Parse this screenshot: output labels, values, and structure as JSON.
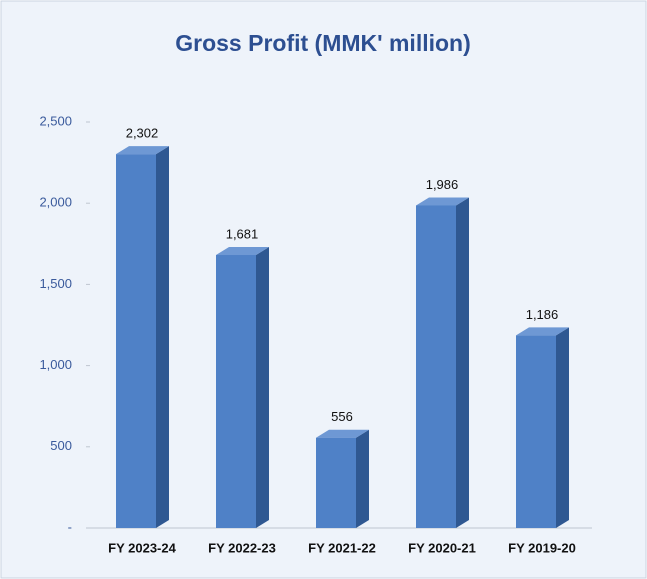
{
  "chart_data": {
    "type": "bar3d",
    "title": "Gross Profit (MMK' million)",
    "categories": [
      "FY 2023-24",
      "FY 2022-23",
      "FY 2021-22",
      "FY 2020-21",
      "FY 2019-20"
    ],
    "values": [
      2302,
      1681,
      556,
      1986,
      1186
    ],
    "value_labels": [
      "2,302",
      "1,681",
      "556",
      "1,986",
      "1,186"
    ],
    "color": "#4f81c7",
    "ylim": [
      0,
      2500
    ],
    "yticks": [
      {
        "value": 0,
        "label": "-"
      },
      500,
      {
        "value": 1000,
        "label": "1,000"
      },
      {
        "value": 1500,
        "label": "1,500"
      },
      {
        "value": 2000,
        "label": "2,000"
      },
      {
        "value": 2500,
        "label": "2,500"
      }
    ]
  }
}
